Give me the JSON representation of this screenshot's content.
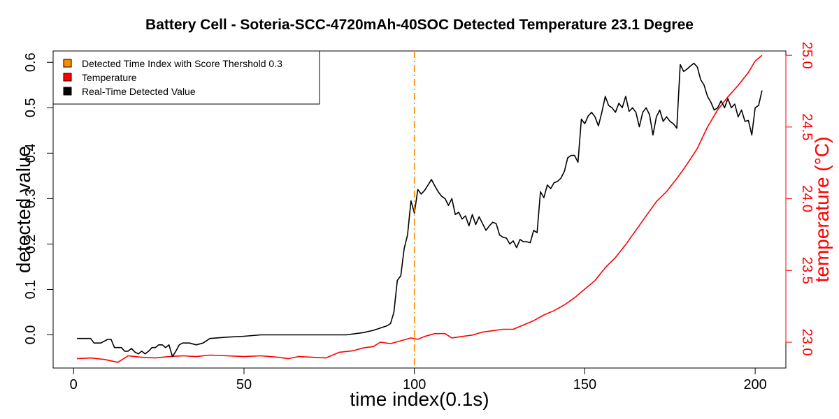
{
  "chart_data": {
    "type": "line",
    "title": "Battery Cell - Soteria-SCC-4720mAh-40SOC Detected Temperature 23.1 Degree",
    "xlabel": "time index(0.1s)",
    "ylabel": "detected value",
    "y2label": "temperature (°C)",
    "xlim": [
      -6,
      209
    ],
    "ylim": [
      -0.073,
      0.625
    ],
    "y2lim": [
      22.82,
      25.03
    ],
    "x_ticks": [
      "0",
      "50",
      "100",
      "150",
      "200"
    ],
    "y_ticks": [
      "0.0",
      "0.1",
      "0.2",
      "0.3",
      "0.4",
      "0.5",
      "0.6"
    ],
    "y2_ticks": [
      "23.0",
      "23.5",
      "24.0",
      "24.5",
      "25.0"
    ],
    "grid": false,
    "legend_position": "top-left",
    "legend": [
      {
        "label": "Detected Time Index with Score Thershold 0.3",
        "color": "#ff8c00"
      },
      {
        "label": "Temperature",
        "color": "#ff0000"
      },
      {
        "label": "Real-Time Detected Value",
        "color": "#000000"
      }
    ],
    "vline": {
      "x": 100,
      "color": "#ff8c00",
      "style": "dash-dot"
    },
    "series": [
      {
        "name": "Real-Time Detected Value",
        "axis": "left",
        "color": "#000000",
        "points": [
          [
            1,
            -0.008
          ],
          [
            3,
            -0.008
          ],
          [
            5,
            -0.008
          ],
          [
            6,
            -0.018
          ],
          [
            8,
            -0.018
          ],
          [
            10,
            -0.01
          ],
          [
            11,
            -0.01
          ],
          [
            12,
            -0.028
          ],
          [
            14,
            -0.028
          ],
          [
            15,
            -0.036
          ],
          [
            16,
            -0.036
          ],
          [
            17,
            -0.03
          ],
          [
            18,
            -0.038
          ],
          [
            19,
            -0.042
          ],
          [
            20,
            -0.036
          ],
          [
            21,
            -0.042
          ],
          [
            22,
            -0.036
          ],
          [
            23,
            -0.028
          ],
          [
            24,
            -0.028
          ],
          [
            25,
            -0.022
          ],
          [
            26,
            -0.022
          ],
          [
            27,
            -0.028
          ],
          [
            28,
            -0.022
          ],
          [
            29,
            -0.048
          ],
          [
            30,
            -0.036
          ],
          [
            31,
            -0.022
          ],
          [
            32,
            -0.018
          ],
          [
            34,
            -0.018
          ],
          [
            36,
            -0.022
          ],
          [
            38,
            -0.018
          ],
          [
            40,
            -0.008
          ],
          [
            45,
            -0.005
          ],
          [
            50,
            -0.003
          ],
          [
            55,
            0.0
          ],
          [
            60,
            0.0
          ],
          [
            65,
            0.0
          ],
          [
            70,
            0.0
          ],
          [
            75,
            0.0
          ],
          [
            80,
            0.0
          ],
          [
            85,
            0.005
          ],
          [
            88,
            0.01
          ],
          [
            90,
            0.015
          ],
          [
            92,
            0.02
          ],
          [
            93,
            0.025
          ],
          [
            94,
            0.05
          ],
          [
            95,
            0.12
          ],
          [
            96,
            0.13
          ],
          [
            97,
            0.19
          ],
          [
            98,
            0.22
          ],
          [
            99,
            0.295
          ],
          [
            100,
            0.268
          ],
          [
            101,
            0.32
          ],
          [
            102,
            0.31
          ],
          [
            103,
            0.318
          ],
          [
            104,
            0.33
          ],
          [
            105,
            0.342
          ],
          [
            106,
            0.328
          ],
          [
            107,
            0.315
          ],
          [
            108,
            0.305
          ],
          [
            109,
            0.3
          ],
          [
            110,
            0.285
          ],
          [
            111,
            0.3
          ],
          [
            112,
            0.265
          ],
          [
            113,
            0.27
          ],
          [
            114,
            0.255
          ],
          [
            115,
            0.262
          ],
          [
            116,
            0.24
          ],
          [
            117,
            0.265
          ],
          [
            118,
            0.243
          ],
          [
            119,
            0.26
          ],
          [
            120,
            0.245
          ],
          [
            121,
            0.23
          ],
          [
            122,
            0.24
          ],
          [
            123,
            0.248
          ],
          [
            124,
            0.245
          ],
          [
            125,
            0.22
          ],
          [
            126,
            0.215
          ],
          [
            127,
            0.213
          ],
          [
            128,
            0.2
          ],
          [
            129,
            0.207
          ],
          [
            130,
            0.192
          ],
          [
            131,
            0.21
          ],
          [
            132,
            0.205
          ],
          [
            133,
            0.205
          ],
          [
            134,
            0.203
          ],
          [
            135,
            0.23
          ],
          [
            136,
            0.225
          ],
          [
            137,
            0.315
          ],
          [
            138,
            0.302
          ],
          [
            139,
            0.33
          ],
          [
            140,
            0.322
          ],
          [
            141,
            0.335
          ],
          [
            142,
            0.338
          ],
          [
            143,
            0.345
          ],
          [
            144,
            0.36
          ],
          [
            145,
            0.39
          ],
          [
            146,
            0.395
          ],
          [
            147,
            0.395
          ],
          [
            148,
            0.38
          ],
          [
            149,
            0.475
          ],
          [
            150,
            0.465
          ],
          [
            151,
            0.482
          ],
          [
            152,
            0.49
          ],
          [
            153,
            0.48
          ],
          [
            154,
            0.46
          ],
          [
            155,
            0.49
          ],
          [
            156,
            0.525
          ],
          [
            157,
            0.505
          ],
          [
            158,
            0.5
          ],
          [
            159,
            0.49
          ],
          [
            160,
            0.51
          ],
          [
            161,
            0.5
          ],
          [
            162,
            0.525
          ],
          [
            163,
            0.492
          ],
          [
            164,
            0.5
          ],
          [
            165,
            0.49
          ],
          [
            166,
            0.458
          ],
          [
            167,
            0.49
          ],
          [
            168,
            0.5
          ],
          [
            169,
            0.485
          ],
          [
            170,
            0.44
          ],
          [
            171,
            0.48
          ],
          [
            172,
            0.495
          ],
          [
            173,
            0.47
          ],
          [
            174,
            0.48
          ],
          [
            175,
            0.47
          ],
          [
            176,
            0.465
          ],
          [
            177,
            0.455
          ],
          [
            178,
            0.595
          ],
          [
            179,
            0.58
          ],
          [
            180,
            0.585
          ],
          [
            181,
            0.592
          ],
          [
            182,
            0.598
          ],
          [
            183,
            0.59
          ],
          [
            184,
            0.562
          ],
          [
            185,
            0.55
          ],
          [
            186,
            0.525
          ],
          [
            187,
            0.512
          ],
          [
            188,
            0.495
          ],
          [
            189,
            0.5
          ],
          [
            190,
            0.515
          ],
          [
            191,
            0.5
          ],
          [
            192,
            0.52
          ],
          [
            193,
            0.5
          ],
          [
            194,
            0.508
          ],
          [
            195,
            0.48
          ],
          [
            196,
            0.495
          ],
          [
            197,
            0.47
          ],
          [
            198,
            0.472
          ],
          [
            199,
            0.44
          ],
          [
            200,
            0.5
          ],
          [
            201,
            0.505
          ],
          [
            202,
            0.538
          ]
        ]
      },
      {
        "name": "Temperature",
        "axis": "right",
        "color": "#ff0000",
        "points": [
          [
            1,
            22.885
          ],
          [
            5,
            22.89
          ],
          [
            9,
            22.88
          ],
          [
            13,
            22.86
          ],
          [
            16,
            22.905
          ],
          [
            20,
            22.895
          ],
          [
            24,
            22.89
          ],
          [
            28,
            22.9
          ],
          [
            32,
            22.905
          ],
          [
            36,
            22.9
          ],
          [
            40,
            22.91
          ],
          [
            45,
            22.905
          ],
          [
            50,
            22.9
          ],
          [
            55,
            22.905
          ],
          [
            60,
            22.895
          ],
          [
            63,
            22.885
          ],
          [
            66,
            22.9
          ],
          [
            70,
            22.895
          ],
          [
            74,
            22.89
          ],
          [
            78,
            22.93
          ],
          [
            82,
            22.94
          ],
          [
            85,
            22.96
          ],
          [
            88,
            22.97
          ],
          [
            90,
            23.0
          ],
          [
            93,
            22.99
          ],
          [
            96,
            23.01
          ],
          [
            99,
            23.03
          ],
          [
            101,
            23.02
          ],
          [
            103,
            23.04
          ],
          [
            106,
            23.06
          ],
          [
            109,
            23.06
          ],
          [
            111,
            23.03
          ],
          [
            114,
            23.04
          ],
          [
            117,
            23.05
          ],
          [
            120,
            23.07
          ],
          [
            123,
            23.08
          ],
          [
            126,
            23.09
          ],
          [
            129,
            23.09
          ],
          [
            132,
            23.12
          ],
          [
            135,
            23.15
          ],
          [
            138,
            23.19
          ],
          [
            141,
            23.22
          ],
          [
            144,
            23.26
          ],
          [
            147,
            23.31
          ],
          [
            150,
            23.37
          ],
          [
            153,
            23.43
          ],
          [
            156,
            23.52
          ],
          [
            159,
            23.59
          ],
          [
            162,
            23.68
          ],
          [
            165,
            23.78
          ],
          [
            168,
            23.88
          ],
          [
            171,
            23.98
          ],
          [
            174,
            24.05
          ],
          [
            177,
            24.14
          ],
          [
            180,
            24.24
          ],
          [
            183,
            24.35
          ],
          [
            186,
            24.5
          ],
          [
            189,
            24.62
          ],
          [
            192,
            24.71
          ],
          [
            195,
            24.79
          ],
          [
            198,
            24.88
          ],
          [
            200,
            24.96
          ],
          [
            202,
            25.0
          ]
        ]
      }
    ]
  }
}
